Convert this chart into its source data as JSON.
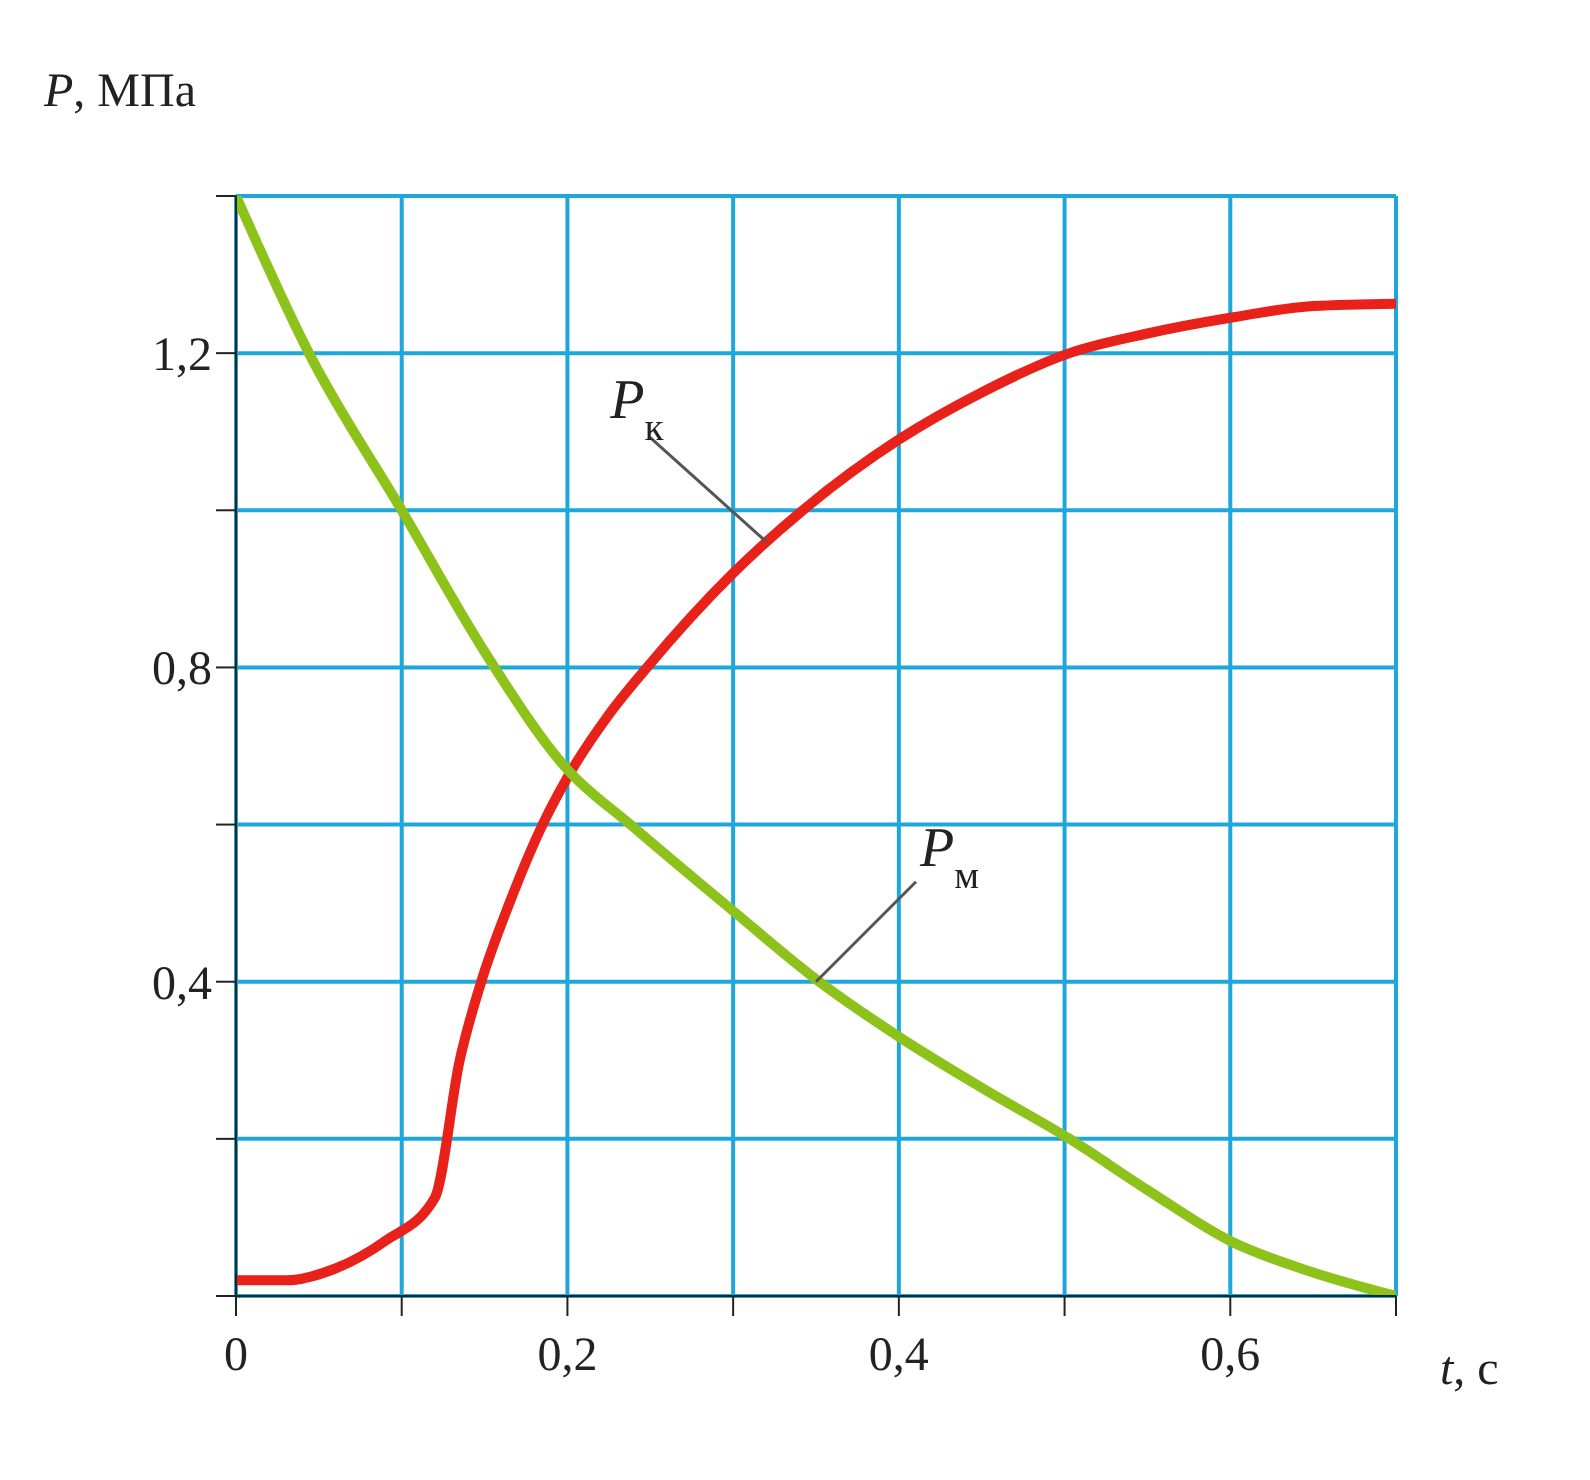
{
  "chart_data": {
    "type": "line",
    "xlabel": "t, с",
    "ylabel": "P, МПа",
    "xlim": [
      0,
      0.7
    ],
    "ylim": [
      0,
      1.4
    ],
    "xticks": [
      {
        "value": 0,
        "label": "0"
      },
      {
        "value": 0.1,
        "label": null
      },
      {
        "value": 0.2,
        "label": "0,2"
      },
      {
        "value": 0.3,
        "label": null
      },
      {
        "value": 0.4,
        "label": "0,4"
      },
      {
        "value": 0.5,
        "label": null
      },
      {
        "value": 0.6,
        "label": "0,6"
      },
      {
        "value": 0.7,
        "label": null
      }
    ],
    "yticks": [
      {
        "value": 0,
        "label": null
      },
      {
        "value": 0.2,
        "label": null
      },
      {
        "value": 0.4,
        "label": "0,4"
      },
      {
        "value": 0.6,
        "label": null
      },
      {
        "value": 0.8,
        "label": "0,8"
      },
      {
        "value": 1.0,
        "label": null
      },
      {
        "value": 1.2,
        "label": "1,2"
      },
      {
        "value": 1.4,
        "label": null
      }
    ],
    "grid": true,
    "marker": "none",
    "line_style": "solid",
    "series": [
      {
        "color": "#e8211a",
        "x": [
          0,
          0.03,
          0.06,
          0.09,
          0.12,
          0.135,
          0.148,
          0.165,
          0.185,
          0.2,
          0.225,
          0.248,
          0.3,
          0.342,
          0.4,
          0.45,
          0.503,
          0.55,
          0.6,
          0.65,
          0.7
        ],
        "values": [
          0.02,
          0.02,
          0.035,
          0.07,
          0.125,
          0.3,
          0.4,
          0.5,
          0.6,
          0.66,
          0.74,
          0.8,
          0.92,
          1.0,
          1.09,
          1.15,
          1.2,
          1.225,
          1.245,
          1.26,
          1.263
        ]
      },
      {
        "color": "#8cc21a",
        "x": [
          0,
          0.044,
          0.1,
          0.15,
          0.2,
          0.238,
          0.3,
          0.352,
          0.4,
          0.45,
          0.503,
          0.55,
          0.6,
          0.65,
          0.7
        ],
        "values": [
          1.4,
          1.2,
          1.0,
          0.82,
          0.67,
          0.6,
          0.49,
          0.4,
          0.33,
          0.265,
          0.2,
          0.135,
          0.07,
          0.03,
          0
        ]
      }
    ],
    "annotations": [
      {
        "text": "P$_{к}$",
        "x": 0.32,
        "y": 0.96
      },
      {
        "text": "P$_{м}$",
        "x": 0.35,
        "y": 0.4
      }
    ]
  }
}
